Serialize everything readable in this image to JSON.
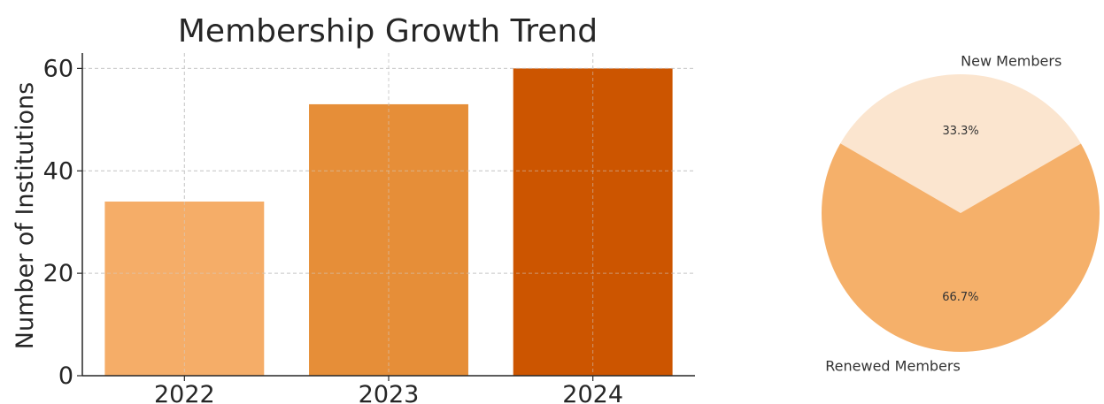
{
  "chart_data": [
    {
      "type": "bar",
      "title": "Membership Growth Trend",
      "xlabel": "",
      "ylabel": "Number of Institutions",
      "categories": [
        "2022",
        "2023",
        "2024"
      ],
      "values": [
        34,
        53,
        60
      ],
      "colors": [
        "#f5ad68",
        "#e68e38",
        "#cc5500"
      ],
      "ylim": [
        0,
        63
      ],
      "yticks": [
        0,
        20,
        40,
        60
      ],
      "grid": true
    },
    {
      "type": "pie",
      "labels": [
        "New Members",
        "Renewed Members"
      ],
      "values": [
        33.3,
        66.7
      ],
      "percent_labels": [
        "33.3%",
        "66.7%"
      ],
      "colors": [
        "#fbe5cf",
        "#f5b06a"
      ]
    }
  ]
}
